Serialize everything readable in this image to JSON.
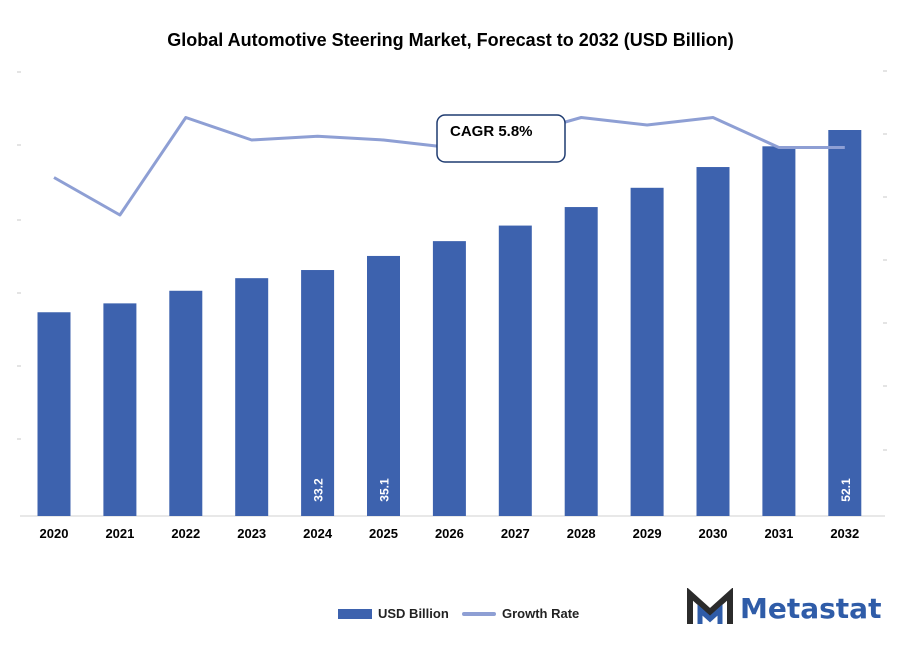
{
  "chart_data": {
    "type": "bar",
    "title": "Global Automotive Steering Market, Forecast to 2032 (USD Billion)",
    "categories": [
      "2020",
      "2021",
      "2022",
      "2023",
      "2024",
      "2025",
      "2026",
      "2027",
      "2028",
      "2029",
      "2030",
      "2031",
      "2032"
    ],
    "series": [
      {
        "name": "USD Billion",
        "type": "bar",
        "color": "#3d62ae",
        "values": [
          27.5,
          28.7,
          30.4,
          32.1,
          33.2,
          35.1,
          37.1,
          39.2,
          41.7,
          44.3,
          47.1,
          49.9,
          52.1
        ],
        "labels": [
          "",
          "",
          "",
          "",
          "33.2",
          "35.1",
          "",
          "",
          "",
          "",
          "",
          "",
          "52.1"
        ]
      },
      {
        "name": "Growth Rate",
        "type": "line",
        "color": "#8e9fd4",
        "values": [
          5.1,
          4.6,
          5.9,
          5.6,
          5.65,
          5.6,
          5.5,
          5.65,
          5.9,
          5.8,
          5.9,
          5.5,
          5.5
        ]
      }
    ],
    "ylim": [
      0,
      52.1
    ],
    "xlabel": "",
    "ylabel": "",
    "grid": false,
    "legend_position": "bottom",
    "annotation": "CAGR 5.8%"
  },
  "brand": {
    "name": "Metastat"
  }
}
